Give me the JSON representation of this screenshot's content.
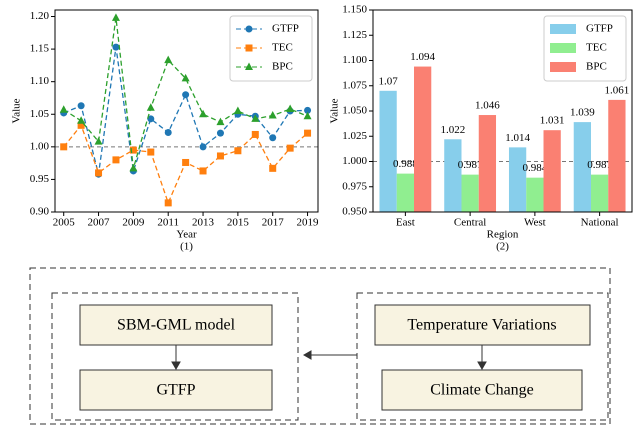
{
  "chart_data": [
    {
      "type": "line",
      "x_label": "Year",
      "y_label": "Value",
      "caption": "(1)",
      "x": [
        2005,
        2006,
        2007,
        2008,
        2009,
        2010,
        2011,
        2012,
        2013,
        2014,
        2015,
        2016,
        2017,
        2018,
        2019
      ],
      "xlim": [
        2004.5,
        2019.6
      ],
      "xticks": [
        2005,
        2007,
        2009,
        2011,
        2013,
        2015,
        2017,
        2019
      ],
      "ylim": [
        0.9,
        1.21
      ],
      "yticks": [
        {
          "value": 0.9,
          "label": "0.90"
        },
        {
          "value": 0.95,
          "label": "0.95"
        },
        {
          "value": 1.0,
          "label": "1.00"
        },
        {
          "value": 1.05,
          "label": "1.05"
        },
        {
          "value": 1.1,
          "label": "1.10"
        },
        {
          "value": 1.15,
          "label": "1.15"
        },
        {
          "value": 1.2,
          "label": "1.20"
        }
      ],
      "reference_line": 1.0,
      "legend": "upper right",
      "series": [
        {
          "name": "GTFP",
          "color": "#1f77b4",
          "marker": "circle",
          "values": [
            1.052,
            1.063,
            0.958,
            1.153,
            0.963,
            1.043,
            1.022,
            1.08,
            1.0,
            1.021,
            1.05,
            1.047,
            1.014,
            1.055,
            1.056
          ]
        },
        {
          "name": "TEC",
          "color": "#ff7f0e",
          "marker": "square",
          "values": [
            1.0,
            1.033,
            0.96,
            0.98,
            0.995,
            0.992,
            0.914,
            0.976,
            0.963,
            0.986,
            0.994,
            1.019,
            0.967,
            0.998,
            1.021
          ]
        },
        {
          "name": "BPC",
          "color": "#2ca02c",
          "marker": "triangle",
          "values": [
            1.057,
            1.04,
            1.008,
            1.198,
            0.967,
            1.06,
            1.133,
            1.105,
            1.05,
            1.038,
            1.055,
            1.043,
            1.048,
            1.058,
            1.047
          ]
        }
      ]
    },
    {
      "type": "bar",
      "x_label": "Region",
      "y_label": "Value",
      "caption": "(2)",
      "categories": [
        "East",
        "Central",
        "West",
        "National"
      ],
      "ylim": [
        0.95,
        1.15
      ],
      "yticks": [
        {
          "value": 0.95,
          "label": "0.950"
        },
        {
          "value": 0.975,
          "label": "0.975"
        },
        {
          "value": 1.0,
          "label": "1.000"
        },
        {
          "value": 1.025,
          "label": "1.025"
        },
        {
          "value": 1.05,
          "label": "1.050"
        },
        {
          "value": 1.075,
          "label": "1.075"
        },
        {
          "value": 1.1,
          "label": "1.100"
        },
        {
          "value": 1.125,
          "label": "1.125"
        },
        {
          "value": 1.15,
          "label": "1.150"
        }
      ],
      "reference_line": 1.0,
      "legend": "upper right",
      "series": [
        {
          "name": "GTFP",
          "color": "#87ceeb",
          "values": [
            1.07,
            1.022,
            1.014,
            1.039
          ]
        },
        {
          "name": "TEC",
          "color": "#90ee90",
          "values": [
            0.988,
            0.987,
            0.984,
            0.987
          ]
        },
        {
          "name": "BPC",
          "color": "#fa8072",
          "values": [
            1.094,
            1.046,
            1.031,
            1.061
          ]
        }
      ]
    }
  ],
  "diagram": {
    "nodes": [
      {
        "label": "SBM-GML model"
      },
      {
        "label": "GTFP"
      },
      {
        "label": "Temperature Variations"
      },
      {
        "label": "Climate Change"
      }
    ]
  }
}
